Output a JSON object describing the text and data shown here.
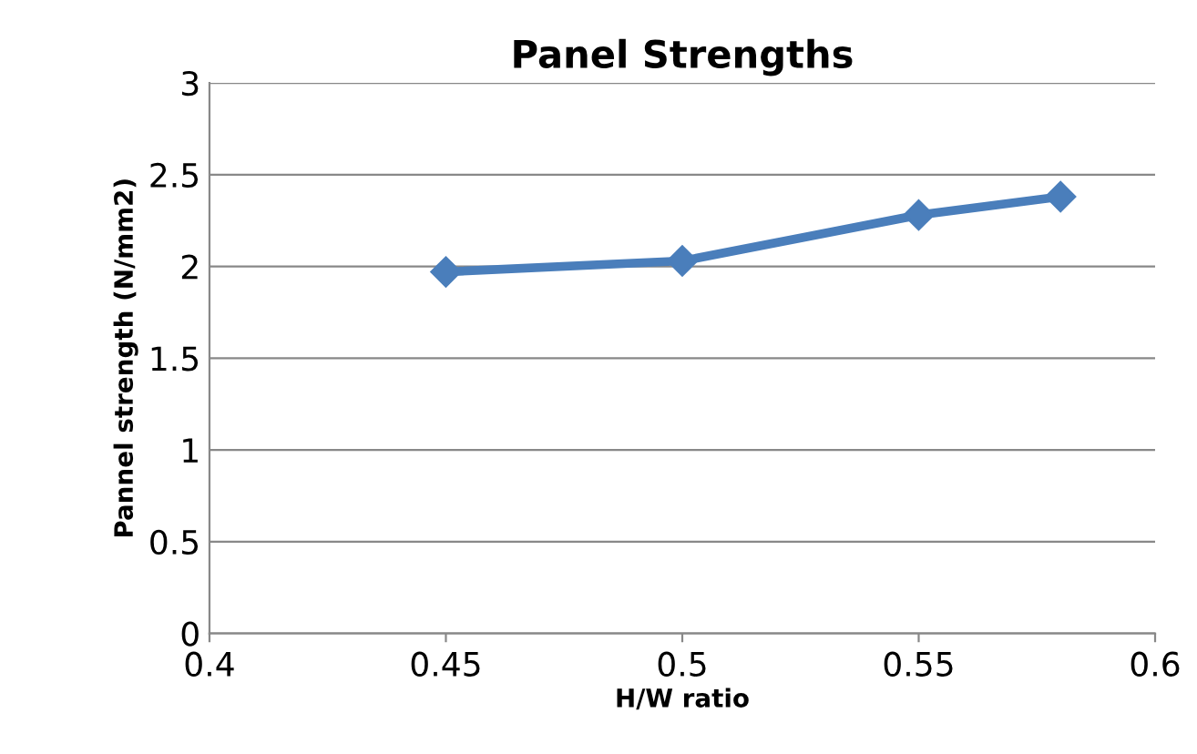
{
  "chart_data": {
    "type": "line",
    "title": "Panel Strengths",
    "xlabel": "H/W ratio",
    "ylabel": "Pannel strength (N/mm2)",
    "x": [
      0.45,
      0.5,
      0.55,
      0.58
    ],
    "series": [
      {
        "color": "#4a7ebb",
        "values": [
          1.97,
          2.03,
          2.28,
          2.38
        ]
      }
    ],
    "xlim": [
      0.4,
      0.6
    ],
    "xticks": [
      0.4,
      0.45,
      0.5,
      0.55,
      0.6
    ],
    "ylim": [
      0,
      3
    ],
    "yticks": [
      0,
      0.5,
      1,
      1.5,
      2,
      2.5,
      3
    ],
    "grid": "y",
    "marker": "diamond",
    "line_style": "solid",
    "legend": false
  }
}
